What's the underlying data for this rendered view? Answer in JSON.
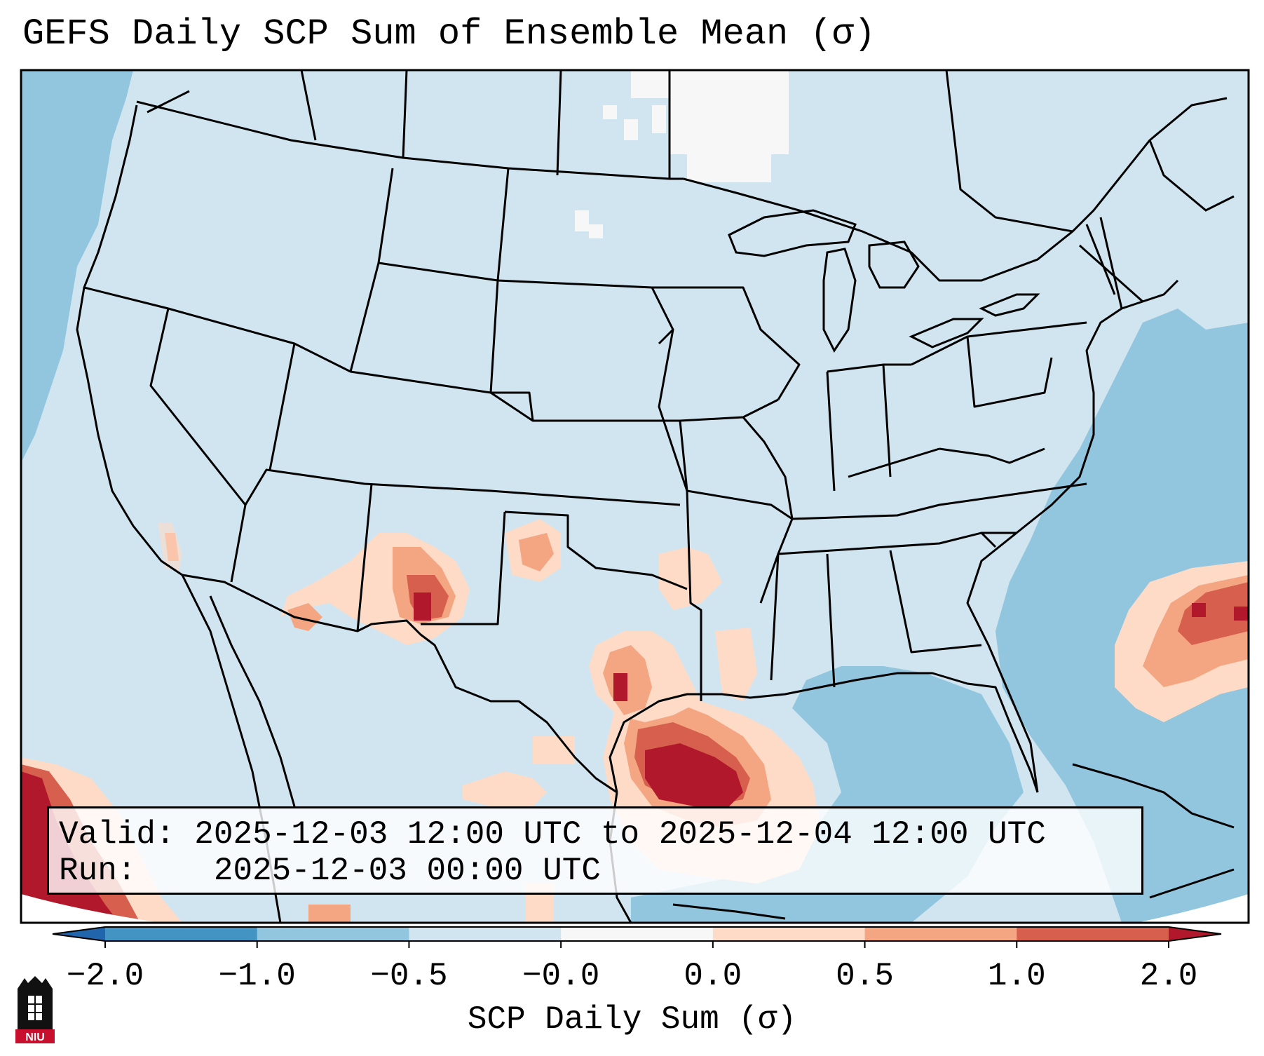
{
  "title": "GEFS Daily SCP Sum of Ensemble Mean (σ)",
  "info": {
    "valid_label": "Valid:",
    "valid_value": "2025-12-03 12:00 UTC to 2025-12-04 12:00 UTC",
    "run_label": "Run:",
    "run_value": "2025-12-03 00:00 UTC"
  },
  "colorbar": {
    "label": "SCP Daily Sum (σ)",
    "ticks": [
      "−2.0",
      "−1.0",
      "−0.5",
      "−0.0",
      "0.0",
      "0.5",
      "1.0",
      "2.0"
    ],
    "colors": [
      "#4393c3",
      "#92c5de",
      "#d1e5f0",
      "#f7f7f7",
      "#fddbc7",
      "#f4a582",
      "#d6604d"
    ],
    "under_color": "#2166ac",
    "over_color": "#b2182b"
  },
  "logo_text": "NIU",
  "colors": {
    "land_base": "#d1e5f0",
    "ocean_neg": "#92c5de",
    "neutral": "#f7f7f7",
    "lowpos": "#fddbc7",
    "midpos": "#f4a582",
    "highpos": "#d6604d",
    "peak": "#b2182b"
  }
}
